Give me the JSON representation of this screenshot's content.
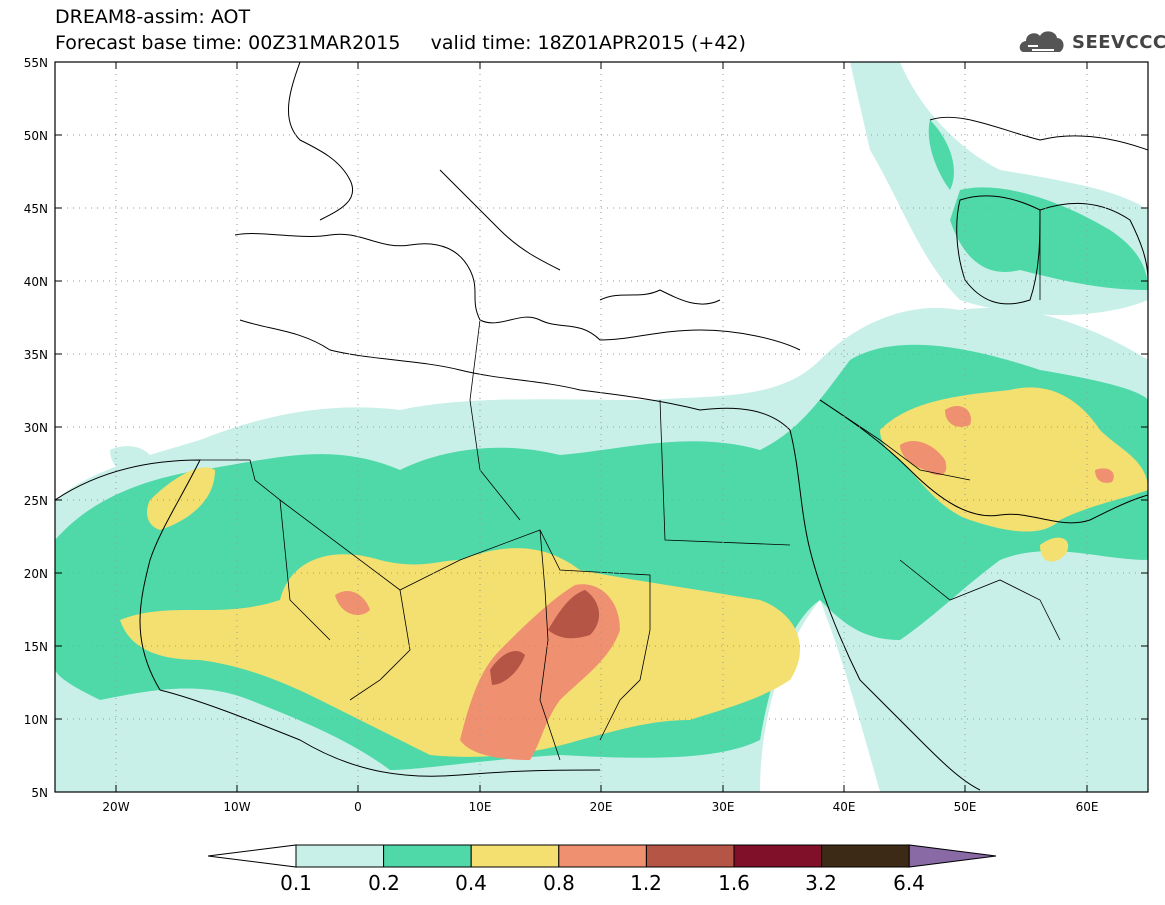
{
  "title": {
    "line1": "DREAM8-assim: AOT",
    "line2": "Forecast base time: 00Z31MAR2015     valid time: 18Z01APR2015 (+42)"
  },
  "logo": {
    "text": "SEEVCCC",
    "icon": "cloud-icon"
  },
  "axes": {
    "lat_labels": [
      "55N",
      "50N",
      "45N",
      "40N",
      "35N",
      "30N",
      "25N",
      "20N",
      "15N",
      "10N",
      "5N"
    ],
    "lon_labels": [
      "20W",
      "10W",
      "0",
      "10E",
      "20E",
      "30E",
      "40E",
      "50E",
      "60E"
    ]
  },
  "colorbar": {
    "ticks": [
      "0.1",
      "0.2",
      "0.4",
      "0.8",
      "1.2",
      "1.6",
      "3.2",
      "6.4"
    ],
    "colors": [
      "#ffffff",
      "#c8f0e8",
      "#4fd9a8",
      "#f3e070",
      "#ef9070",
      "#b55545",
      "#80102a",
      "#3d2a16",
      "#8a6aa5"
    ]
  },
  "map_data": {
    "projection": "lat-lon",
    "lon_range": [
      -25,
      65
    ],
    "lat_range": [
      5,
      55
    ],
    "variable": "Aerosol Optical Thickness"
  }
}
